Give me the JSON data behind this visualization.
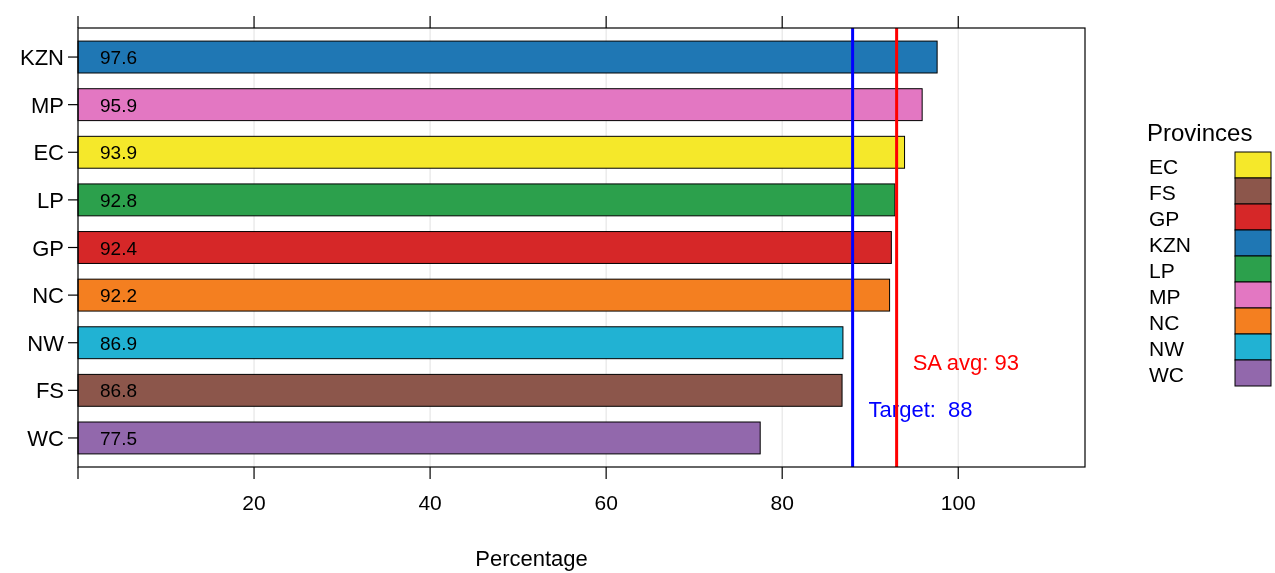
{
  "chart_data": {
    "type": "bar",
    "orientation": "horizontal",
    "xlabel": "Percentage",
    "legend_title": "Provinces",
    "categories": [
      "KZN",
      "MP",
      "EC",
      "LP",
      "GP",
      "NC",
      "NW",
      "FS",
      "WC"
    ],
    "values": [
      97.6,
      95.9,
      93.9,
      92.8,
      92.4,
      92.2,
      86.9,
      86.8,
      77.5
    ],
    "colors": [
      "#1f77b4",
      "#e377c2",
      "#f5e82a",
      "#2ca04c",
      "#d62728",
      "#f47f20",
      "#21b2d3",
      "#8c564b",
      "#9268ac"
    ],
    "xlim": [
      0,
      114.4
    ],
    "xticks": [
      {
        "value": 0,
        "label": null
      },
      20,
      40,
      60,
      80,
      100
    ],
    "ref_lines": [
      {
        "axis": "x",
        "value": 88,
        "label": "Target:  88",
        "color": "#0000ff"
      },
      {
        "axis": "x",
        "value": 93,
        "label": "SA avg: 93",
        "color": "#ff0000"
      }
    ],
    "data_labels": true,
    "grid": "x",
    "legend": "right"
  }
}
